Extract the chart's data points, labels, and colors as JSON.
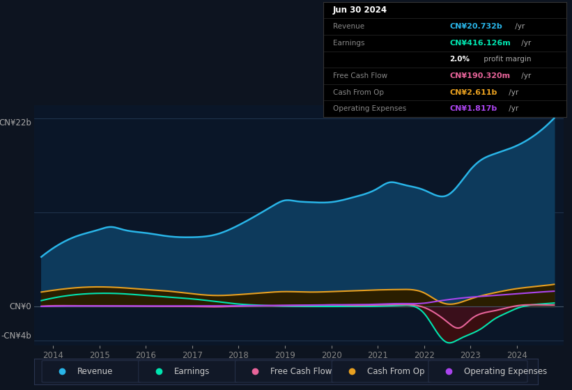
{
  "bg_color": "#0d1420",
  "plot_bg": "#0a1628",
  "grid_color": "#1e3050",
  "ylim": [
    -4.5,
    23.5
  ],
  "xlim": [
    2013.6,
    2025.0
  ],
  "xticks": [
    2014,
    2015,
    2016,
    2017,
    2018,
    2019,
    2020,
    2021,
    2022,
    2023,
    2024
  ],
  "ylabel_top": "CN¥22b",
  "ylabel_mid": "CN¥0",
  "ylabel_bot": "-CN¥4b",
  "revenue_color": "#29b5e8",
  "earnings_color": "#00e5b0",
  "fcf_color": "#e8649a",
  "cashop_color": "#e8a020",
  "opex_color": "#aa44ee",
  "revenue_fill": "#0d3a5c",
  "revenue_x": [
    2013.75,
    2014.0,
    2014.5,
    2015.0,
    2015.25,
    2015.5,
    2016.0,
    2016.5,
    2017.0,
    2017.5,
    2018.0,
    2018.5,
    2018.75,
    2019.0,
    2019.25,
    2019.5,
    2020.0,
    2020.5,
    2021.0,
    2021.25,
    2021.5,
    2022.0,
    2022.5,
    2023.0,
    2023.25,
    2023.5,
    2024.0,
    2024.5,
    2024.8
  ],
  "revenue": [
    5.8,
    6.8,
    8.2,
    9.0,
    9.3,
    9.0,
    8.6,
    8.2,
    8.1,
    8.4,
    9.5,
    11.0,
    11.8,
    12.4,
    12.3,
    12.2,
    12.2,
    12.8,
    13.8,
    14.5,
    14.3,
    13.6,
    13.0,
    16.0,
    17.2,
    17.8,
    18.8,
    20.5,
    22.0
  ],
  "earnings_x": [
    2013.75,
    2014.0,
    2014.5,
    2015.0,
    2015.5,
    2016.0,
    2016.5,
    2017.0,
    2017.5,
    2018.0,
    2018.5,
    2019.0,
    2019.5,
    2020.0,
    2020.5,
    2021.0,
    2021.25,
    2021.5,
    2022.0,
    2022.25,
    2022.5,
    2022.75,
    2023.0,
    2023.25,
    2023.5,
    2023.75,
    2024.0,
    2024.5,
    2024.8
  ],
  "earnings": [
    0.7,
    1.0,
    1.4,
    1.55,
    1.5,
    1.3,
    1.1,
    0.9,
    0.6,
    0.3,
    0.15,
    0.05,
    0.02,
    0.02,
    0.02,
    0.05,
    0.1,
    0.15,
    -0.8,
    -2.8,
    -4.2,
    -3.8,
    -3.2,
    -2.5,
    -1.5,
    -0.8,
    -0.2,
    0.3,
    0.42
  ],
  "cashop_x": [
    2013.75,
    2014.0,
    2014.5,
    2015.0,
    2015.5,
    2016.0,
    2016.5,
    2017.0,
    2017.5,
    2018.0,
    2018.5,
    2018.75,
    2019.0,
    2019.5,
    2020.0,
    2020.5,
    2021.0,
    2021.5,
    2022.0,
    2022.25,
    2022.5,
    2023.0,
    2023.5,
    2024.0,
    2024.5,
    2024.8
  ],
  "cashop": [
    1.7,
    1.9,
    2.2,
    2.3,
    2.2,
    2.0,
    1.8,
    1.5,
    1.3,
    1.4,
    1.6,
    1.7,
    1.75,
    1.7,
    1.75,
    1.85,
    1.95,
    2.0,
    1.6,
    0.8,
    0.3,
    0.9,
    1.6,
    2.1,
    2.4,
    2.6
  ],
  "fcf_x": [
    2013.75,
    2014.0,
    2014.5,
    2015.0,
    2015.5,
    2016.0,
    2017.0,
    2017.5,
    2018.0,
    2018.5,
    2019.0,
    2019.5,
    2020.0,
    2020.5,
    2021.0,
    2021.5,
    2022.0,
    2022.25,
    2022.5,
    2022.75,
    2023.0,
    2023.5,
    2024.0,
    2024.5,
    2024.8
  ],
  "fcf": [
    0.05,
    0.1,
    0.1,
    0.1,
    0.08,
    0.05,
    0.02,
    -0.02,
    0.05,
    0.1,
    0.12,
    0.15,
    0.2,
    0.15,
    0.2,
    0.25,
    -0.1,
    -0.8,
    -1.8,
    -2.5,
    -1.5,
    -0.5,
    0.1,
    0.2,
    0.19
  ],
  "opex_x": [
    2013.75,
    2014.0,
    2015.0,
    2016.0,
    2017.0,
    2018.0,
    2019.0,
    2020.0,
    2020.5,
    2021.0,
    2021.5,
    2022.0,
    2022.25,
    2022.5,
    2023.0,
    2023.5,
    2024.0,
    2024.5,
    2024.8
  ],
  "opex": [
    0.02,
    0.05,
    0.07,
    0.07,
    0.08,
    0.1,
    0.15,
    0.2,
    0.22,
    0.28,
    0.35,
    0.4,
    0.6,
    0.8,
    1.1,
    1.3,
    1.5,
    1.7,
    1.8
  ],
  "legend_items": [
    {
      "label": "Revenue",
      "color": "#29b5e8"
    },
    {
      "label": "Earnings",
      "color": "#00e5b0"
    },
    {
      "label": "Free Cash Flow",
      "color": "#e8649a"
    },
    {
      "label": "Cash From Op",
      "color": "#e8a020"
    },
    {
      "label": "Operating Expenses",
      "color": "#aa44ee"
    }
  ]
}
